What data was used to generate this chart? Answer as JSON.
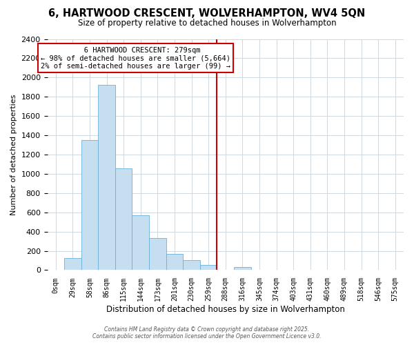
{
  "title": "6, HARTWOOD CRESCENT, WOLVERHAMPTON, WV4 5QN",
  "subtitle": "Size of property relative to detached houses in Wolverhampton",
  "xlabel": "Distribution of detached houses by size in Wolverhampton",
  "ylabel": "Number of detached properties",
  "bar_labels": [
    "0sqm",
    "29sqm",
    "58sqm",
    "86sqm",
    "115sqm",
    "144sqm",
    "173sqm",
    "201sqm",
    "230sqm",
    "259sqm",
    "288sqm",
    "316sqm",
    "345sqm",
    "374sqm",
    "403sqm",
    "431sqm",
    "460sqm",
    "489sqm",
    "518sqm",
    "546sqm",
    "575sqm"
  ],
  "bar_values": [
    0,
    125,
    1350,
    1920,
    1060,
    570,
    335,
    170,
    105,
    55,
    0,
    30,
    0,
    0,
    0,
    0,
    0,
    0,
    0,
    0,
    0
  ],
  "bar_color": "#c5dff0",
  "bar_edge_color": "#6aafd6",
  "vline_x_idx": 10,
  "vline_color": "#cc0000",
  "ylim": [
    0,
    2400
  ],
  "yticks": [
    0,
    200,
    400,
    600,
    800,
    1000,
    1200,
    1400,
    1600,
    1800,
    2000,
    2200,
    2400
  ],
  "annotation_title": "6 HARTWOOD CRESCENT: 279sqm",
  "annotation_line1": "← 98% of detached houses are smaller (5,664)",
  "annotation_line2": "2% of semi-detached houses are larger (99) →",
  "footer1": "Contains HM Land Registry data © Crown copyright and database right 2025.",
  "footer2": "Contains public sector information licensed under the Open Government Licence v3.0.",
  "bg_color": "#ffffff",
  "plot_bg_color": "#ffffff",
  "grid_color": "#d0d8e0"
}
